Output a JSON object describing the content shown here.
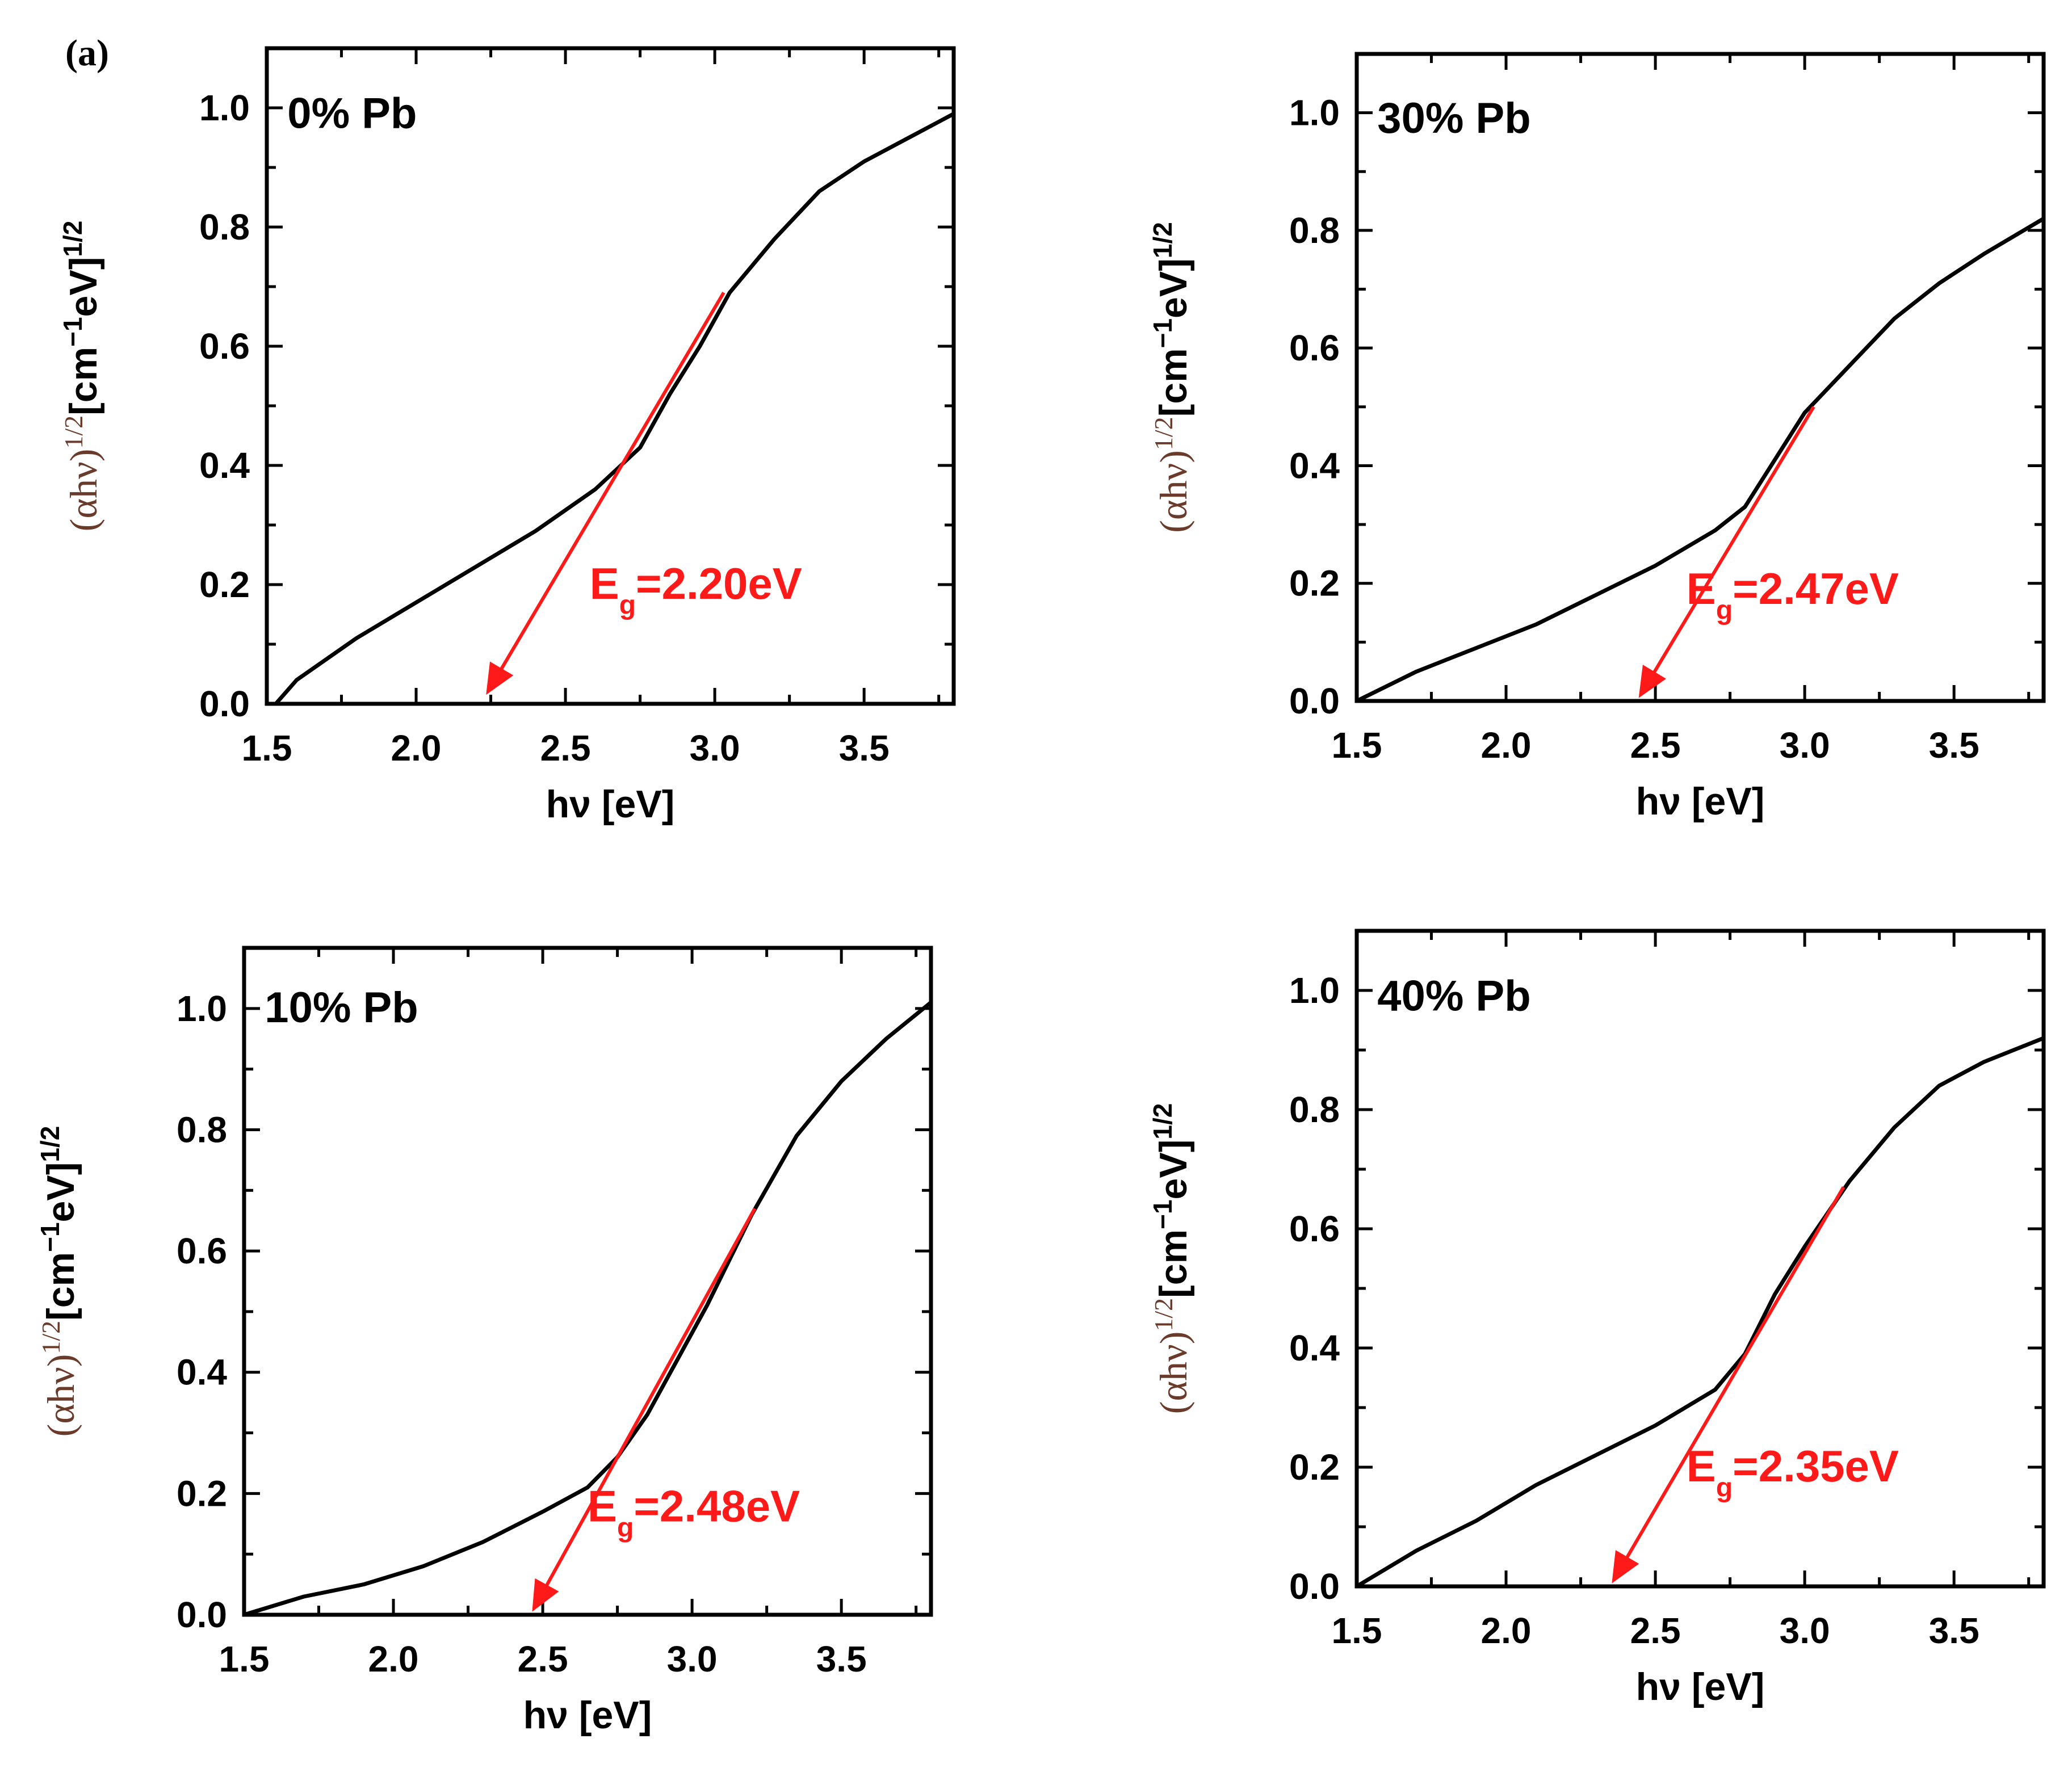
{
  "figure": {
    "panel_label": "(a)",
    "axis_labels": {
      "x": "hν [eV]",
      "y": "(αhν)^1/2 [cm^-1 eV]^1/2"
    },
    "colors": {
      "curve": "#000000",
      "fit": "#ff1a1a",
      "axes": "#000000"
    }
  },
  "chart_data": [
    {
      "type": "line",
      "title": "0% Pb",
      "xlabel": "hν [eV]",
      "ylabel": "(αhν)^1/2 [cm^-1 eV]^1/2",
      "xlim": [
        1.5,
        3.8
      ],
      "ylim": [
        0.0,
        1.1
      ],
      "xticks": [
        "1.5",
        "2.0",
        "2.5",
        "3.0",
        "3.5"
      ],
      "yticks": [
        "0.0",
        "0.2",
        "0.4",
        "0.6",
        "0.8",
        "1.0"
      ],
      "series": [
        {
          "name": "0% Pb",
          "x": [
            1.53,
            1.6,
            1.8,
            2.0,
            2.2,
            2.4,
            2.6,
            2.75,
            2.85,
            2.95,
            3.05,
            3.2,
            3.35,
            3.5,
            3.65,
            3.8
          ],
          "y": [
            0.0,
            0.04,
            0.11,
            0.17,
            0.23,
            0.29,
            0.36,
            0.43,
            0.52,
            0.6,
            0.69,
            0.78,
            0.86,
            0.91,
            0.95,
            0.99
          ]
        }
      ],
      "fit_line": {
        "x": [
          3.03,
          2.24
        ],
        "y": [
          0.69,
          0.02
        ]
      },
      "band_gap_label": "E_g=2.20eV",
      "band_gap_ev": 2.2
    },
    {
      "type": "line",
      "title": "30% Pb",
      "xlabel": "hν [eV]",
      "ylabel": "(αhν)^1/2 [cm^-1 eV]^1/2",
      "xlim": [
        1.5,
        3.8
      ],
      "ylim": [
        0.0,
        1.1
      ],
      "xticks": [
        "1.5",
        "2.0",
        "2.5",
        "3.0",
        "3.5"
      ],
      "yticks": [
        "0.0",
        "0.2",
        "0.4",
        "0.6",
        "0.8",
        "1.0"
      ],
      "series": [
        {
          "name": "30% Pb",
          "x": [
            1.5,
            1.7,
            1.9,
            2.1,
            2.3,
            2.5,
            2.7,
            2.8,
            2.9,
            3.0,
            3.15,
            3.3,
            3.45,
            3.6,
            3.8
          ],
          "y": [
            0.0,
            0.05,
            0.09,
            0.13,
            0.18,
            0.23,
            0.29,
            0.33,
            0.41,
            0.49,
            0.57,
            0.65,
            0.71,
            0.76,
            0.82
          ]
        }
      ],
      "fit_line": {
        "x": [
          3.03,
          2.45
        ],
        "y": [
          0.5,
          0.01
        ]
      },
      "band_gap_label": "E_g=2.47eV",
      "band_gap_ev": 2.47
    },
    {
      "type": "line",
      "title": "10% Pb",
      "xlabel": "hν [eV]",
      "ylabel": "(αhν)^1/2 [cm^-1 eV]^1/2",
      "xlim": [
        1.5,
        3.8
      ],
      "ylim": [
        0.0,
        1.1
      ],
      "xticks": [
        "1.5",
        "2.0",
        "2.5",
        "3.0",
        "3.5"
      ],
      "yticks": [
        "0.0",
        "0.2",
        "0.4",
        "0.6",
        "0.8",
        "1.0"
      ],
      "series": [
        {
          "name": "10% Pb",
          "x": [
            1.5,
            1.7,
            1.9,
            2.1,
            2.3,
            2.5,
            2.65,
            2.75,
            2.85,
            2.95,
            3.05,
            3.2,
            3.35,
            3.5,
            3.65,
            3.8
          ],
          "y": [
            0.0,
            0.03,
            0.05,
            0.08,
            0.12,
            0.17,
            0.21,
            0.26,
            0.33,
            0.42,
            0.51,
            0.66,
            0.79,
            0.88,
            0.95,
            1.01
          ]
        }
      ],
      "fit_line": {
        "x": [
          3.21,
          2.47
        ],
        "y": [
          0.67,
          0.01
        ]
      },
      "band_gap_label": "E_g=2.48eV",
      "band_gap_ev": 2.48
    },
    {
      "type": "line",
      "title": "40% Pb",
      "xlabel": "hν [eV]",
      "ylabel": "(αhν)^1/2 [cm^-1 eV]^1/2",
      "xlim": [
        1.5,
        3.8
      ],
      "ylim": [
        0.0,
        1.1
      ],
      "xticks": [
        "1.5",
        "2.0",
        "2.5",
        "3.0",
        "3.5"
      ],
      "yticks": [
        "0.0",
        "0.2",
        "0.4",
        "0.6",
        "0.8",
        "1.0"
      ],
      "series": [
        {
          "name": "40% Pb",
          "x": [
            1.5,
            1.7,
            1.9,
            2.1,
            2.3,
            2.5,
            2.7,
            2.8,
            2.9,
            3.0,
            3.15,
            3.3,
            3.45,
            3.6,
            3.8
          ],
          "y": [
            0.0,
            0.06,
            0.11,
            0.17,
            0.22,
            0.27,
            0.33,
            0.39,
            0.49,
            0.57,
            0.68,
            0.77,
            0.84,
            0.88,
            0.92
          ]
        }
      ],
      "fit_line": {
        "x": [
          3.13,
          2.36
        ],
        "y": [
          0.67,
          0.01
        ]
      },
      "band_gap_label": "E_g=2.35eV",
      "band_gap_ev": 2.35
    }
  ]
}
